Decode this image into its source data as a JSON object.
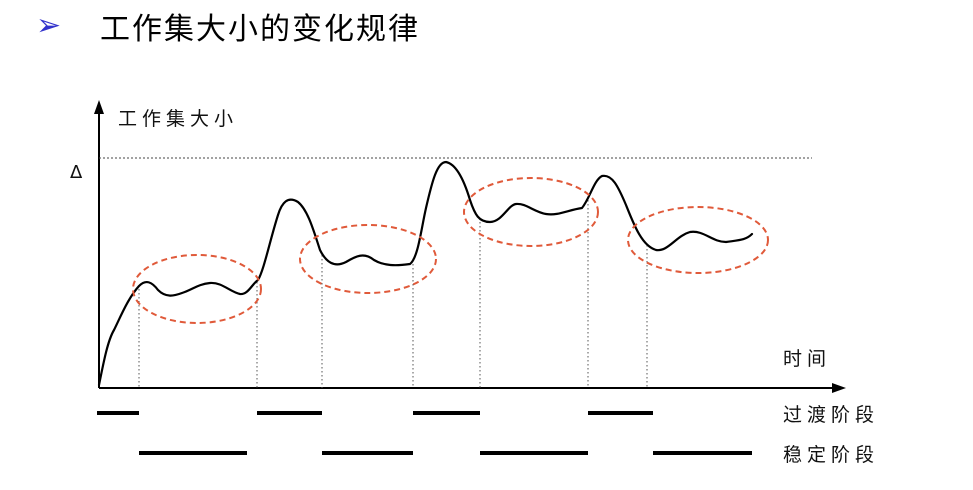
{
  "slide": {
    "bullet": "➢",
    "title": "工作集大小的变化规律"
  },
  "diagram": {
    "y_axis_label": "工作集大小",
    "x_axis_label": "时间",
    "delta_label": "Δ",
    "transition_label": "过渡阶段",
    "stable_label": "稳定阶段"
  },
  "colors": {
    "bullet": "#3333cc",
    "ellipse": "#e05a3a",
    "curve": "#000000"
  }
}
